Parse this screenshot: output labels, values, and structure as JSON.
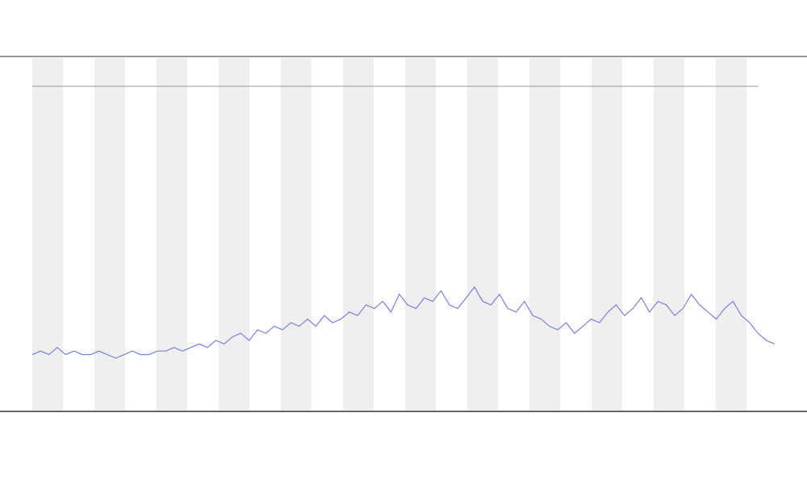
{
  "chart_data": {
    "type": "line",
    "color": "#7b7fe0",
    "values": [
      16,
      17,
      16,
      18,
      16,
      17,
      16,
      16,
      17,
      16,
      15,
      16,
      17,
      16,
      16,
      17,
      17,
      18,
      17,
      18,
      19,
      18,
      20,
      19,
      21,
      22,
      20,
      23,
      22,
      24,
      23,
      25,
      24,
      26,
      24,
      27,
      25,
      26,
      28,
      27,
      30,
      29,
      31,
      28,
      33,
      30,
      29,
      32,
      31,
      34,
      30,
      29,
      32,
      35,
      31,
      30,
      33,
      29,
      28,
      31,
      27,
      26,
      24,
      23,
      25,
      22,
      24,
      26,
      25,
      28,
      30,
      27,
      29,
      32,
      28,
      31,
      30,
      27,
      29,
      33,
      30,
      28,
      26,
      29,
      31,
      27,
      25,
      22,
      20,
      19
    ],
    "ylim": [
      0,
      100
    ]
  }
}
